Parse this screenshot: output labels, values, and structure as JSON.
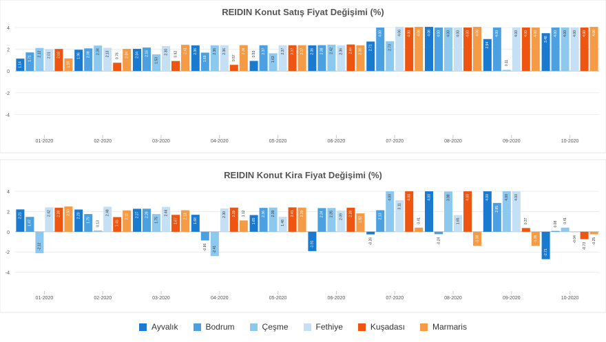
{
  "series_meta": [
    {
      "name": "Ayvalık",
      "color": "#1a7ad0"
    },
    {
      "name": "Bodrum",
      "color": "#4aa0e0"
    },
    {
      "name": "Çeşme",
      "color": "#8dc8ee"
    },
    {
      "name": "Fethiye",
      "color": "#c5e0f5"
    },
    {
      "name": "Kuşadası",
      "color": "#ee5510"
    },
    {
      "name": "Marmaris",
      "color": "#f59a45"
    }
  ],
  "chart_data": [
    {
      "type": "bar",
      "title": "REIDIN Konut Satış Fiyat Değişimi (%)",
      "xlabel": "",
      "ylabel": "",
      "ylim": [
        -6,
        4
      ],
      "yticks": [
        "4",
        "2",
        "0",
        "-2",
        "-4"
      ],
      "grid": true,
      "categories": [
        "01-2020",
        "02-2020",
        "03-2020",
        "04-2020",
        "05-2020",
        "06-2020",
        "07-2020",
        "08-2020",
        "09-2020",
        "10-2020"
      ],
      "series": [
        {
          "name": "Ayvalık",
          "values": [
            1.14,
            1.96,
            2.04,
            2.36,
            0.93,
            2.36,
            2.71,
            4.06,
            2.94,
            3.48
          ]
        },
        {
          "name": "Bodrum",
          "values": [
            1.71,
            2.08,
            2.16,
            1.69,
            2.37,
            2.38,
            4.0,
            4.0,
            4.0,
            4.0
          ]
        },
        {
          "name": "Çeşme",
          "values": [
            2.12,
            2.34,
            1.53,
            2.36,
            1.63,
            2.42,
            2.73,
            4.0,
            0.11,
            4.0
          ]
        },
        {
          "name": "Fethiye",
          "values": [
            2.01,
            2.13,
            2.3,
            2.36,
            2.37,
            2.36,
            4.06,
            4.0,
            4.0,
            4.0
          ]
        },
        {
          "name": "Kuşadası",
          "values": [
            2.03,
            0.76,
            0.92,
            0.57,
            2.37,
            2.44,
            4.0,
            4.0,
            4.0,
            4.0
          ]
        },
        {
          "name": "Marmaris",
          "values": [
            1.16,
            2.04,
            2.41,
            2.38,
            2.37,
            2.36,
            4.06,
            4.06,
            4.0,
            4.06
          ]
        }
      ],
      "data_labels": [
        [
          "1.14",
          "1.71",
          "2.12",
          "2.01",
          "2.03",
          "1.16"
        ],
        [
          "1.96",
          "2.08",
          "2.34",
          "2.13",
          "0.76",
          "2.04"
        ],
        [
          "2.04",
          "2.16",
          "1.53",
          "2.30",
          "0.92",
          "2.41"
        ],
        [
          "2.36",
          "1.69",
          "2.36",
          "2.36",
          "0.57",
          "2.38"
        ],
        [
          "0.93",
          "2.37",
          "1.63",
          "2.37",
          "2.37",
          "2.37"
        ],
        [
          "2.36",
          "2.38",
          "2.42",
          "2.36",
          "2.44",
          "2.36"
        ],
        [
          "2.71",
          "4.00",
          "2.73",
          "4.06",
          "4.00",
          "4.06"
        ],
        [
          "4.06",
          "4.00",
          "4.00",
          "4.00",
          "4.00",
          "4.06"
        ],
        [
          "2.94",
          "4.00",
          "0.11",
          "4.00",
          "4.00",
          "4.00"
        ],
        [
          "3.48",
          "4.00",
          "4.00",
          "4.00",
          "4.00",
          "4.06"
        ]
      ]
    },
    {
      "type": "bar",
      "title": "REIDIN Konut Kira Fiyat Değişimi (%)",
      "xlabel": "",
      "ylabel": "",
      "ylim": [
        -6,
        4
      ],
      "yticks": [
        "4",
        "2",
        "0",
        "-2",
        "-4"
      ],
      "grid": true,
      "categories": [
        "01-2020",
        "02-2020",
        "03-2020",
        "04-2020",
        "05-2020",
        "06-2020",
        "07-2020",
        "08-2020",
        "09-2020",
        "10-2020"
      ],
      "series": [
        {
          "name": "Ayvalık",
          "values": [
            2.21,
            2.2,
            2.27,
            1.68,
            1.65,
            -1.91,
            -0.26,
            4.0,
            4.0,
            -2.71
          ]
        },
        {
          "name": "Bodrum",
          "values": [
            1.47,
            1.75,
            2.28,
            -0.86,
            2.36,
            2.34,
            2.13,
            -0.24,
            2.85,
            0.08
          ]
        },
        {
          "name": "Çeşme",
          "values": [
            -2.12,
            0.13,
            1.75,
            -2.41,
            2.39,
            2.35,
            4.0,
            3.98,
            4.0,
            0.41
          ]
        },
        {
          "name": "Fethiye",
          "values": [
            2.42,
            2.48,
            2.46,
            2.3,
            1.48,
            2.09,
            3.11,
            1.65,
            4.0,
            -0.04
          ]
        },
        {
          "name": "Kuşadası",
          "values": [
            2.38,
            1.45,
            1.67,
            2.39,
            2.41,
            2.38,
            4.0,
            4.0,
            0.37,
            -0.73
          ]
        },
        {
          "name": "Marmaris",
          "values": [
            2.5,
            2.11,
            2.13,
            1.12,
            2.39,
            1.82,
            0.41,
            -1.38,
            -1.38,
            -0.25
          ]
        }
      ],
      "data_labels": [
        [
          "2.21",
          "1.47",
          "-2.12",
          "2.42",
          "2.38",
          "2.50"
        ],
        [
          "2.20",
          "1.75",
          "0.13",
          "2.48",
          "1.45",
          "2.11"
        ],
        [
          "2.27",
          "2.28",
          "1.75",
          "2.46",
          "1.67",
          "2.13"
        ],
        [
          "1.68",
          "-0.86",
          "-2.41",
          "2.30",
          "2.39",
          "1.12"
        ],
        [
          "1.65",
          "2.36",
          "2.39",
          "1.48",
          "2.41",
          "2.39"
        ],
        [
          "-1.91",
          "2.34",
          "2.35",
          "2.09",
          "2.38",
          "1.82"
        ],
        [
          "-0.26",
          "2.13",
          "4.00",
          "3.11",
          "4.00",
          "0.41"
        ],
        [
          "4.00",
          "-0.24",
          "3.98",
          "1.65",
          "4.00",
          "-1.38"
        ],
        [
          "4.00",
          "2.85",
          "4.00",
          "4.00",
          "0.37",
          "-1.38"
        ],
        [
          "-2.71",
          "0.08",
          "0.41",
          "-0.04",
          "-0.73",
          "-0.25"
        ]
      ]
    }
  ]
}
